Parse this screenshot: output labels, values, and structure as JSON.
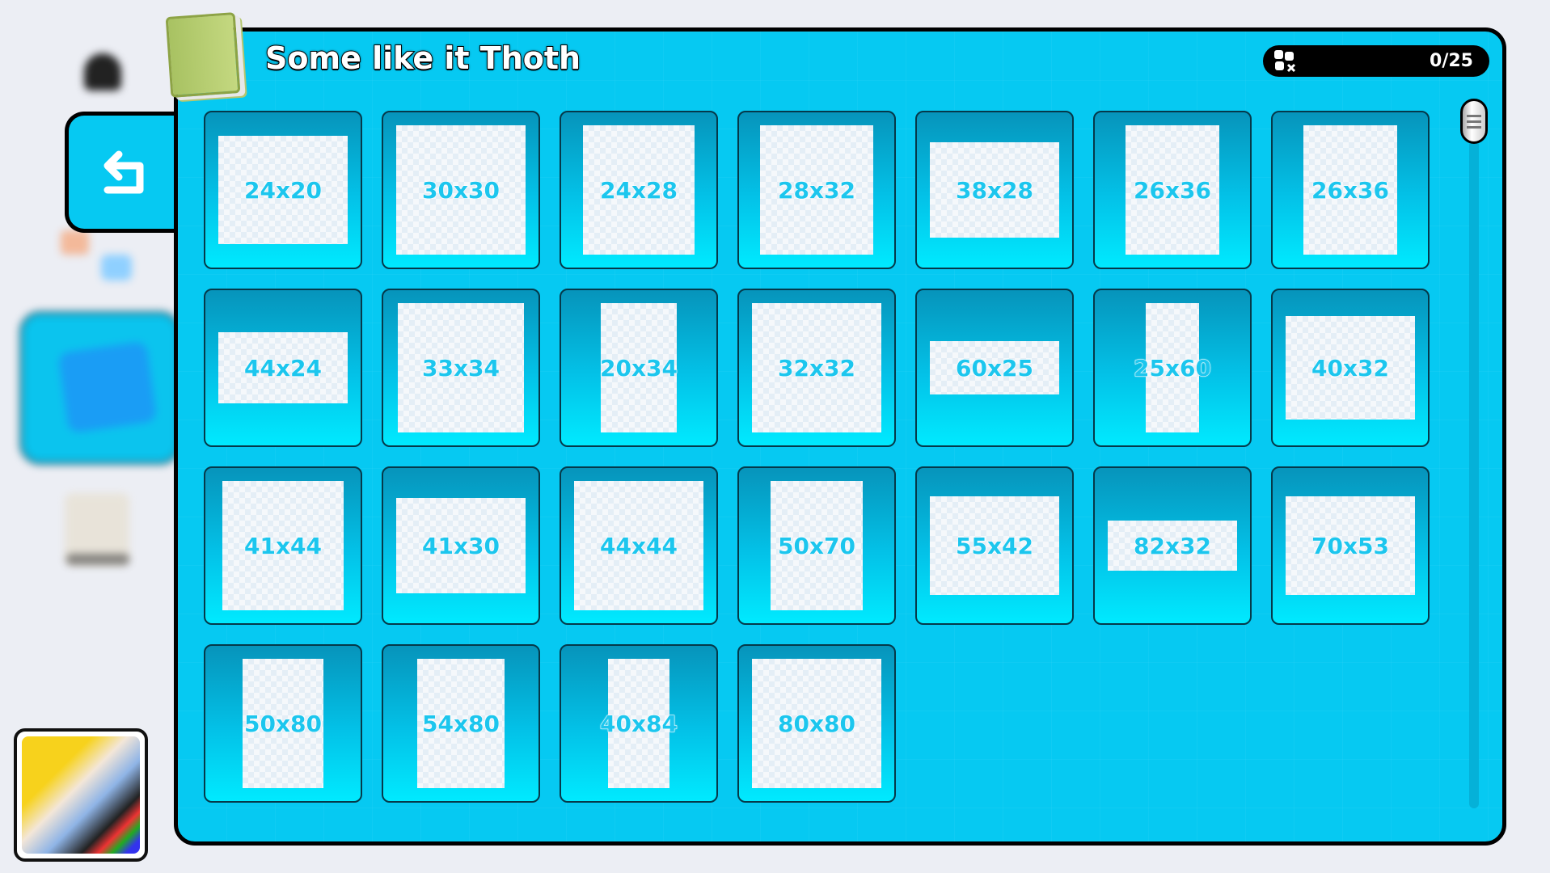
{
  "header": {
    "title": "Some like it Thoth",
    "counter": "0/25",
    "counter_icon": "puzzle-pieces-icon",
    "book_icon": "book-icon"
  },
  "nav": {
    "back_icon": "return-arrow-icon",
    "home_icon": "home-icon"
  },
  "colors": {
    "panel": "#06c9f2",
    "tile_top": "#0694bb",
    "tile_bottom": "#00eaff",
    "label": "#1cc6ee"
  },
  "puzzles": [
    {
      "label": "24x20"
    },
    {
      "label": "30x30"
    },
    {
      "label": "24x28"
    },
    {
      "label": "28x32"
    },
    {
      "label": "38x28"
    },
    {
      "label": "26x36"
    },
    {
      "label": "26x36"
    },
    {
      "label": "44x24"
    },
    {
      "label": "33x34"
    },
    {
      "label": "20x34"
    },
    {
      "label": "32x32"
    },
    {
      "label": "60x25"
    },
    {
      "label": "25x60"
    },
    {
      "label": "40x32"
    },
    {
      "label": "41x44"
    },
    {
      "label": "41x30"
    },
    {
      "label": "44x44"
    },
    {
      "label": "50x70"
    },
    {
      "label": "55x42"
    },
    {
      "label": "82x32"
    },
    {
      "label": "70x53"
    },
    {
      "label": "50x80"
    },
    {
      "label": "54x80"
    },
    {
      "label": "40x84"
    },
    {
      "label": "80x80"
    }
  ]
}
